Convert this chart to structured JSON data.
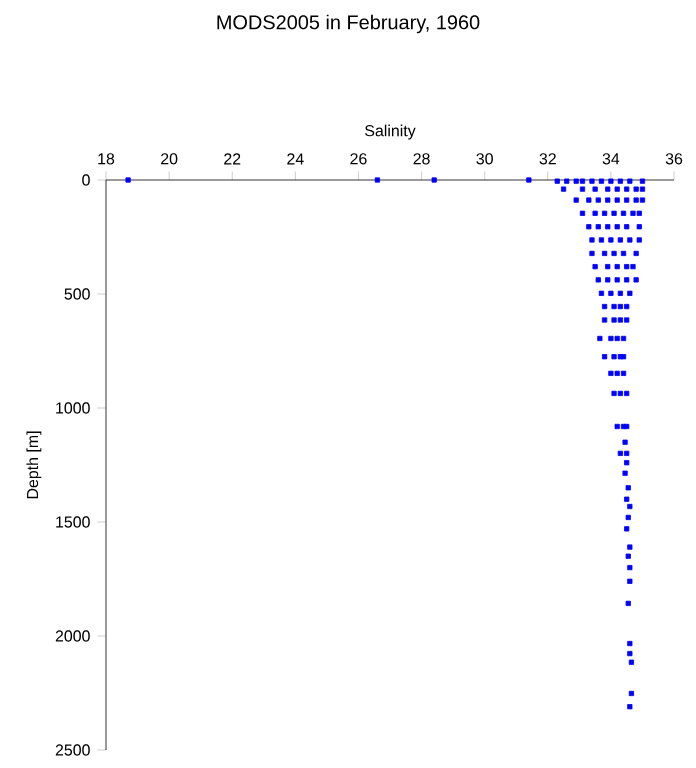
{
  "chart_data": {
    "type": "scatter",
    "title": "MODS2005 in February, 1960",
    "xlabel": "Salinity",
    "ylabel": "Depth [m]",
    "color": "#0000ff",
    "marker": "square",
    "xlim": [
      18,
      36
    ],
    "ylim": [
      2500,
      0
    ],
    "xticks": [
      18,
      20,
      22,
      24,
      26,
      28,
      30,
      32,
      34,
      36
    ],
    "yticks": [
      0,
      500,
      1000,
      1500,
      2000,
      2500
    ],
    "x": [
      18.7,
      26.6,
      28.4,
      31.4,
      32.3,
      32.6,
      32.9,
      33.1,
      33.4,
      33.7,
      34.0,
      34.3,
      34.6,
      35.0,
      32.5,
      33.1,
      33.5,
      33.9,
      34.2,
      34.5,
      34.8,
      35.0,
      32.9,
      33.3,
      33.6,
      33.9,
      34.2,
      34.5,
      34.8,
      35.0,
      33.1,
      33.5,
      33.8,
      34.1,
      34.4,
      34.7,
      34.9,
      33.3,
      33.6,
      33.9,
      34.2,
      34.5,
      34.9,
      33.4,
      33.7,
      34.0,
      34.3,
      34.6,
      34.9,
      33.4,
      33.8,
      34.1,
      34.4,
      34.8,
      33.5,
      33.9,
      34.2,
      34.5,
      34.7,
      33.6,
      33.9,
      34.2,
      34.5,
      34.8,
      33.7,
      34.0,
      34.3,
      34.6,
      33.8,
      34.1,
      34.3,
      34.5,
      33.8,
      34.1,
      34.3,
      34.5,
      33.65,
      34.0,
      34.2,
      34.4,
      33.8,
      34.1,
      34.3,
      34.4,
      34.0,
      34.2,
      34.4,
      34.1,
      34.3,
      34.5,
      34.2,
      34.4,
      34.5,
      34.3,
      34.5,
      34.45,
      34.5,
      34.45,
      34.55,
      34.5,
      34.6,
      34.55,
      34.5,
      34.6,
      34.55,
      34.6,
      34.6,
      34.55,
      34.6,
      34.6,
      34.65,
      34.65,
      34.6
    ],
    "values": [
      0,
      0,
      0,
      0,
      5,
      5,
      5,
      5,
      5,
      5,
      5,
      5,
      5,
      5,
      40,
      40,
      40,
      40,
      40,
      40,
      40,
      40,
      88,
      88,
      88,
      88,
      88,
      88,
      88,
      88,
      146,
      146,
      146,
      146,
      146,
      146,
      146,
      205,
      205,
      205,
      205,
      205,
      205,
      263,
      263,
      263,
      263,
      263,
      263,
      322,
      322,
      322,
      322,
      322,
      380,
      380,
      380,
      380,
      380,
      438,
      438,
      438,
      438,
      438,
      497,
      497,
      497,
      497,
      555,
      555,
      555,
      555,
      614,
      614,
      614,
      614,
      695,
      695,
      695,
      695,
      775,
      775,
      775,
      775,
      848,
      848,
      848,
      936,
      936,
      936,
      1081,
      1081,
      1081,
      1199,
      1199,
      1150,
      1240,
      1286,
      1350,
      1400,
      1432,
      1480,
      1530,
      1610,
      1650,
      1700,
      1760,
      1857,
      2033,
      2077,
      2115,
      2252,
      2310
    ]
  }
}
